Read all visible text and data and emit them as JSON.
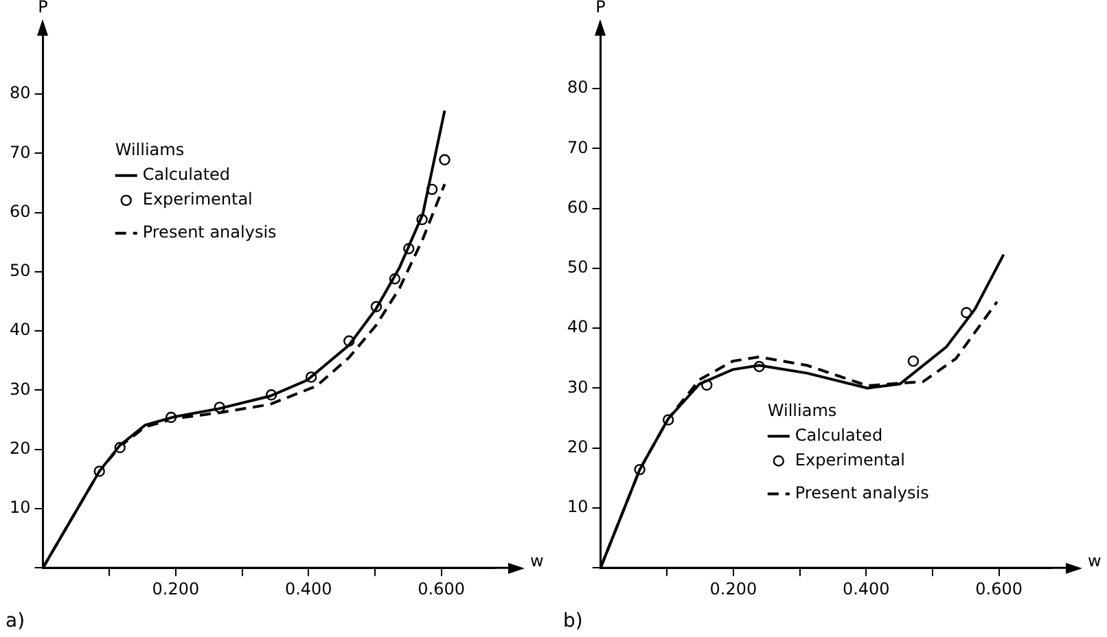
{
  "chart_data": [
    {
      "type": "line",
      "xlabel": "w",
      "ylabel": "P",
      "legend_title": "Williams",
      "legend": "top left",
      "annotations": [
        "a)"
      ],
      "xlim": [
        0,
        0.68
      ],
      "ylim": [
        0,
        88
      ],
      "xticks": [
        {
          "value": 0.1,
          "label": null
        },
        {
          "value": 0.2,
          "label": "0.200"
        },
        {
          "value": 0.3,
          "label": null
        },
        {
          "value": 0.4,
          "label": "0.400"
        },
        {
          "value": 0.5,
          "label": null
        },
        {
          "value": 0.6,
          "label": "0.600"
        }
      ],
      "yticks": [
        {
          "value": 0,
          "label": null
        },
        10,
        20,
        30,
        40,
        50,
        60,
        70,
        80
      ],
      "series": [
        {
          "name": "Calculated",
          "line_style": "solid",
          "color": "#000000",
          "x": [
            0,
            0.085,
            0.116,
            0.154,
            0.198,
            0.266,
            0.342,
            0.398,
            0.461,
            0.502,
            0.537,
            0.572,
            0.605
          ],
          "values": [
            0,
            16.3,
            20.7,
            24.1,
            25.5,
            26.9,
            29,
            31.7,
            37.6,
            43.8,
            50.7,
            59.7,
            77.2
          ]
        },
        {
          "name": "Experimental",
          "type": "scatter",
          "marker": "circle",
          "color": "#000000",
          "x": [
            0.085,
            0.116,
            0.193,
            0.266,
            0.344,
            0.404,
            0.461,
            0.502,
            0.53,
            0.551,
            0.571,
            0.586,
            0.605
          ],
          "values": [
            16.3,
            20.3,
            25.4,
            27.1,
            29.2,
            32.2,
            38.3,
            44.1,
            48.8,
            53.9,
            58.8,
            63.9,
            68.9
          ]
        },
        {
          "name": "Present analysis",
          "line_style": "dashed",
          "color": "#000000",
          "x": [
            0,
            0.085,
            0.116,
            0.154,
            0.198,
            0.266,
            0.342,
            0.412,
            0.461,
            0.502,
            0.537,
            0.572,
            0.605
          ],
          "values": [
            0,
            16.3,
            20.5,
            23.8,
            25.2,
            26.2,
            27.6,
            30.7,
            35.5,
            41,
            47.2,
            55.5,
            64.8
          ]
        }
      ]
    },
    {
      "type": "line",
      "xlabel": "w",
      "ylabel": "P",
      "legend_title": "Williams",
      "legend": "bottom",
      "annotations": [
        "b)"
      ],
      "xlim": [
        0,
        0.68
      ],
      "ylim": [
        0,
        87
      ],
      "xticks": [
        {
          "value": 0.1,
          "label": null
        },
        {
          "value": 0.2,
          "label": "0.200"
        },
        {
          "value": 0.3,
          "label": null
        },
        {
          "value": 0.4,
          "label": "0.400"
        },
        {
          "value": 0.5,
          "label": null
        },
        {
          "value": 0.6,
          "label": "0.600"
        }
      ],
      "yticks": [
        {
          "value": 0,
          "label": null
        },
        10,
        20,
        30,
        40,
        50,
        60,
        70,
        80
      ],
      "series": [
        {
          "name": "Calculated",
          "line_style": "solid",
          "color": "#000000",
          "x": [
            0,
            0.059,
            0.102,
            0.149,
            0.199,
            0.239,
            0.311,
            0.402,
            0.451,
            0.521,
            0.564,
            0.607
          ],
          "values": [
            0,
            16.4,
            24.9,
            30.7,
            33.1,
            33.8,
            32.5,
            30,
            30.7,
            36.9,
            43.2,
            52.3
          ]
        },
        {
          "name": "Experimental",
          "type": "scatter",
          "marker": "circle",
          "color": "#000000",
          "x": [
            0.059,
            0.102,
            0.16,
            0.239,
            0.471,
            0.551
          ],
          "values": [
            16.4,
            24.7,
            30.5,
            33.6,
            34.5,
            42.6
          ]
        },
        {
          "name": "Present analysis",
          "line_style": "dashed",
          "color": "#000000",
          "x": [
            0,
            0.059,
            0.102,
            0.149,
            0.199,
            0.239,
            0.311,
            0.402,
            0.486,
            0.535,
            0.597
          ],
          "values": [
            0,
            16.4,
            24.9,
            31.4,
            34.5,
            35.2,
            33.8,
            30.4,
            31.1,
            34.9,
            44.4
          ]
        }
      ]
    }
  ]
}
